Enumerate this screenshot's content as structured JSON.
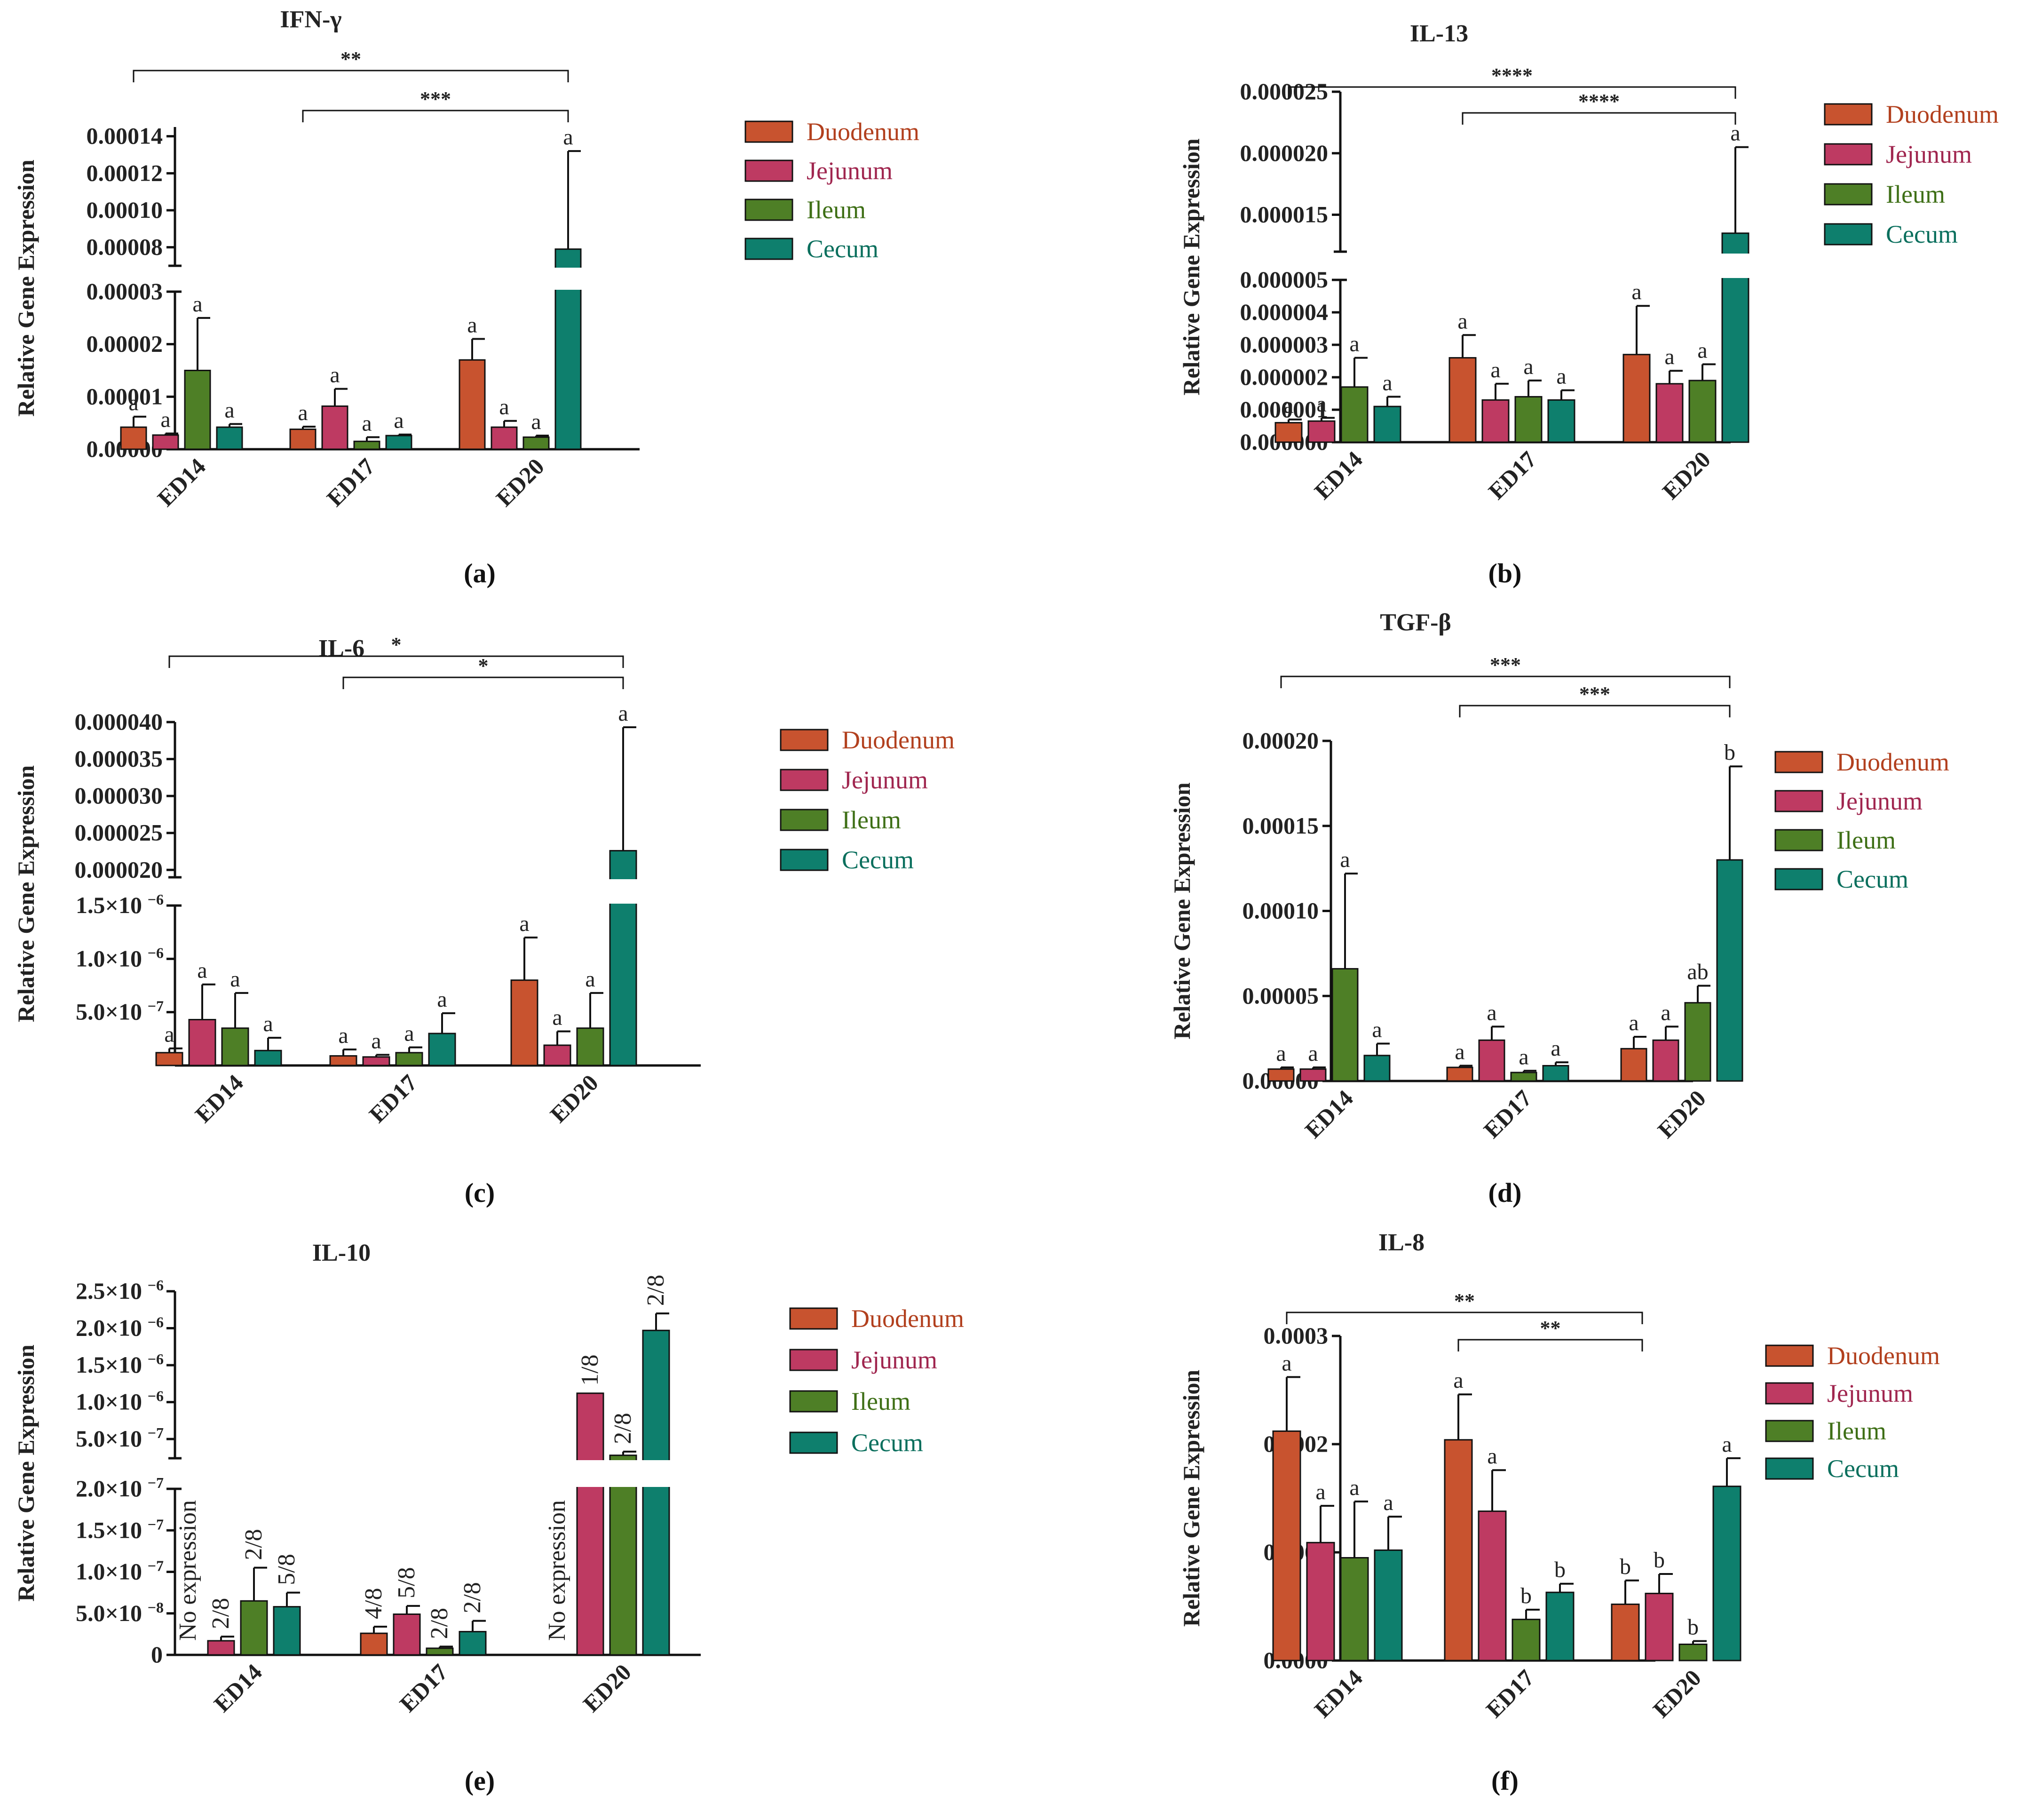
{
  "colors": {
    "Duodenum": "#C8532F",
    "Jejunum": "#BE3A62",
    "Ileum": "#4E7F26",
    "Cecum": "#0E7F6D",
    "legend_text": {
      "Duodenum": "#B2401E",
      "Jejunum": "#A0264F",
      "Ileum": "#3E6F16",
      "Cecum": "#0A6F5D"
    }
  },
  "legend": [
    "Duodenum",
    "Jejunum",
    "Ileum",
    "Cecum"
  ],
  "y_axis_label": "Relative Gene Expression",
  "chart_data": [
    {
      "panel": "(a)",
      "title": "IFN-γ",
      "type": "bar",
      "categories": [
        "ED14",
        "ED17",
        "ED20"
      ],
      "ylabel": "Relative Gene Expression",
      "axis_break": true,
      "lower": {
        "ylim": [
          0,
          3e-05
        ],
        "ticks": [
          0,
          1e-05,
          2e-05,
          3e-05
        ],
        "tick_labels": [
          "0.00000",
          "0.00001",
          "0.00002",
          "0.00003"
        ]
      },
      "upper": {
        "ylim": [
          7e-05,
          0.000145
        ],
        "ticks": [
          8e-05,
          0.0001,
          0.00012,
          0.00014
        ],
        "tick_labels": [
          "0.00008",
          "0.00010",
          "0.00012",
          "0.00014"
        ]
      },
      "series": [
        {
          "name": "Duodenum",
          "values": [
            4.2e-06,
            3.8e-06,
            1.7e-05
          ],
          "err": [
            2e-06,
            5e-07,
            4e-06
          ],
          "letters": [
            "a",
            "a",
            "a"
          ]
        },
        {
          "name": "Jejunum",
          "values": [
            2.7e-06,
            8.2e-06,
            4.2e-06
          ],
          "err": [
            3e-07,
            3.3e-06,
            1.2e-06
          ],
          "letters": [
            "a",
            "a",
            "a"
          ]
        },
        {
          "name": "Ileum",
          "values": [
            1.5e-05,
            1.5e-06,
            2.3e-06
          ],
          "err": [
            1e-05,
            8e-07,
            3e-07
          ],
          "letters": [
            "a",
            "a",
            "a"
          ]
        },
        {
          "name": "Cecum",
          "values": [
            4.2e-06,
            2.6e-06,
            7.9e-05
          ],
          "err": [
            6e-07,
            2e-07,
            5.3e-05
          ],
          "letters": [
            "a",
            "a",
            "a"
          ]
        }
      ],
      "brackets": [
        {
          "label": "**",
          "from": 0,
          "to": 2
        },
        {
          "label": "***",
          "from": 1,
          "to": 2
        }
      ]
    },
    {
      "panel": "(b)",
      "title": "IL-13",
      "type": "bar",
      "categories": [
        "ED14",
        "ED17",
        "ED20"
      ],
      "ylabel": "Relative Gene Expression",
      "axis_break": true,
      "lower": {
        "ylim": [
          0,
          5e-06
        ],
        "ticks": [
          0,
          1e-06,
          2e-06,
          3e-06,
          4e-06,
          5e-06
        ],
        "tick_labels": [
          "0.000000",
          "0.000001",
          "0.000002",
          "0.000003",
          "0.000004",
          "0.000005"
        ]
      },
      "upper": {
        "ylim": [
          1.2e-05,
          2.5e-05
        ],
        "ticks": [
          1.5e-05,
          2e-05,
          2.5e-05
        ],
        "tick_labels": [
          "0.000015",
          "0.000020",
          "0.000025"
        ]
      },
      "series": [
        {
          "name": "Duodenum",
          "values": [
            6e-07,
            2.6e-06,
            2.7e-06
          ],
          "err": [
            1e-07,
            7e-07,
            1.5e-06
          ],
          "letters": [
            "a",
            "a",
            "a"
          ]
        },
        {
          "name": "Jejunum",
          "values": [
            6.5e-07,
            1.3e-06,
            1.8e-06
          ],
          "err": [
            1e-07,
            5e-07,
            4e-07
          ],
          "letters": [
            "a",
            "a",
            "a"
          ]
        },
        {
          "name": "Ileum",
          "values": [
            1.7e-06,
            1.4e-06,
            1.9e-06
          ],
          "err": [
            9e-07,
            5e-07,
            5e-07
          ],
          "letters": [
            "a",
            "a",
            "a"
          ]
        },
        {
          "name": "Cecum",
          "values": [
            1.1e-06,
            1.3e-06,
            1.35e-05
          ],
          "err": [
            3e-07,
            3e-07,
            7e-06
          ],
          "letters": [
            "a",
            "a",
            "a"
          ]
        }
      ],
      "brackets": [
        {
          "label": "****",
          "from": 0,
          "to": 2
        },
        {
          "label": "****",
          "from": 1,
          "to": 2
        }
      ]
    },
    {
      "panel": "(c)",
      "title": "IL-6",
      "type": "bar",
      "categories": [
        "ED14",
        "ED17",
        "ED20"
      ],
      "ylabel": "Relative Gene Expression",
      "axis_break": true,
      "lower": {
        "ylim": [
          0,
          1.5e-06
        ],
        "ticks": [
          5e-07,
          1e-06,
          1.5e-06
        ],
        "tick_labels": [
          "5.0×10",
          "1.0×10",
          "1.5×10"
        ],
        "tick_exps": [
          "−7",
          "−6",
          "−6"
        ]
      },
      "upper": {
        "ylim": [
          1.9e-05,
          4e-05
        ],
        "ticks": [
          2e-05,
          2.5e-05,
          3e-05,
          3.5e-05,
          4e-05
        ],
        "tick_labels": [
          "0.000020",
          "0.000025",
          "0.000030",
          "0.000035",
          "0.000040"
        ]
      },
      "series": [
        {
          "name": "Duodenum",
          "values": [
            1.2e-07,
            9e-08,
            8e-07
          ],
          "err": [
            4e-08,
            6e-08,
            4e-07
          ],
          "letters": [
            "a",
            "a",
            "a"
          ]
        },
        {
          "name": "Jejunum",
          "values": [
            4.3e-07,
            8e-08,
            1.9e-07
          ],
          "err": [
            3.3e-07,
            2e-08,
            1.3e-07
          ],
          "letters": [
            "a",
            "a",
            "a"
          ]
        },
        {
          "name": "Ileum",
          "values": [
            3.5e-07,
            1.2e-07,
            3.5e-07
          ],
          "err": [
            3.3e-07,
            5e-08,
            3.3e-07
          ],
          "letters": [
            "a",
            "a",
            "a"
          ]
        },
        {
          "name": "Cecum",
          "values": [
            1.4e-07,
            3e-07,
            2.26e-05
          ],
          "err": [
            1.2e-07,
            1.9e-07,
            1.67e-05
          ],
          "letters": [
            "a",
            "a",
            "a"
          ]
        }
      ],
      "brackets": [
        {
          "label": "*",
          "from": 0,
          "to": 2
        },
        {
          "label": "*",
          "from": 1,
          "to": 2
        }
      ]
    },
    {
      "panel": "(d)",
      "title": "TGF-β",
      "type": "bar",
      "categories": [
        "ED14",
        "ED17",
        "ED20"
      ],
      "ylabel": "Relative Gene Expression",
      "axis_break": false,
      "lower": {
        "ylim": [
          0,
          0.0002
        ],
        "ticks": [
          0,
          5e-05,
          0.0001,
          0.00015,
          0.0002
        ],
        "tick_labels": [
          "0.00000",
          "0.00005",
          "0.00010",
          "0.00015",
          "0.00020"
        ]
      },
      "series": [
        {
          "name": "Duodenum",
          "values": [
            7e-06,
            8e-06,
            1.9e-05
          ],
          "err": [
            1e-06,
            1e-06,
            7e-06
          ],
          "letters": [
            "a",
            "a",
            "a"
          ]
        },
        {
          "name": "Jejunum",
          "values": [
            7e-06,
            2.4e-05,
            2.4e-05
          ],
          "err": [
            1e-06,
            8e-06,
            8e-06
          ],
          "letters": [
            "a",
            "a",
            "a"
          ]
        },
        {
          "name": "Ileum",
          "values": [
            6.6e-05,
            5e-06,
            4.6e-05
          ],
          "err": [
            5.6e-05,
            1e-06,
            1e-05
          ],
          "letters": [
            "a",
            "a",
            "ab"
          ]
        },
        {
          "name": "Cecum",
          "values": [
            1.5e-05,
            9e-06,
            0.00013
          ],
          "err": [
            7e-06,
            2e-06,
            5.5e-05
          ],
          "letters": [
            "a",
            "a",
            "b"
          ]
        }
      ],
      "brackets": [
        {
          "label": "***",
          "from": 0,
          "to": 2
        },
        {
          "label": "***",
          "from": 1,
          "to": 2
        }
      ]
    },
    {
      "panel": "(e)",
      "title": "IL-10",
      "type": "bar",
      "categories": [
        "ED14",
        "ED17",
        "ED20"
      ],
      "ylabel": "Relative Gene Expression",
      "axis_break": true,
      "lower": {
        "ylim": [
          0,
          2e-07
        ],
        "ticks": [
          0,
          5e-08,
          1e-07,
          1.5e-07,
          2e-07
        ],
        "tick_labels": [
          "0",
          "5.0×10",
          "1.0×10",
          "1.5×10",
          "2.0×10"
        ],
        "tick_exps": [
          "",
          "−8",
          "−7",
          "−7",
          "−7"
        ]
      },
      "upper": {
        "ylim": [
          2.4e-07,
          2.5e-06
        ],
        "ticks": [
          5e-07,
          1e-06,
          1.5e-06,
          2e-06,
          2.5e-06
        ],
        "tick_labels": [
          "5.0×10",
          "1.0×10",
          "1.5×10",
          "2.0×10",
          "2.5×10"
        ],
        "tick_exps": [
          "−7",
          "−6",
          "−6",
          "−6",
          "−6"
        ]
      },
      "series": [
        {
          "name": "Duodenum",
          "values": [
            null,
            2.6e-08,
            null
          ],
          "err": [
            0,
            8e-09,
            0
          ],
          "letters": [
            "",
            "4/8",
            ""
          ]
        },
        {
          "name": "Jejunum",
          "values": [
            1.7e-08,
            4.9e-08,
            1.12e-06
          ],
          "err": [
            5e-09,
            1e-08,
            0
          ],
          "letters": [
            "2/8",
            "5/8",
            "1/8"
          ]
        },
        {
          "name": "Ileum",
          "values": [
            6.5e-08,
            8e-09,
            2.8e-07
          ],
          "err": [
            4e-08,
            2e-09,
            5e-08
          ],
          "letters": [
            "2/8",
            "2/8",
            "2/8"
          ]
        },
        {
          "name": "Cecum",
          "values": [
            5.8e-08,
            2.8e-08,
            1.97e-06
          ],
          "err": [
            1.7e-08,
            1.3e-08,
            2.3e-07
          ],
          "letters": [
            "5/8",
            "2/8",
            "2/8"
          ]
        }
      ],
      "annotations": [
        {
          "text": "No expression",
          "category": 0
        },
        {
          "text": "No expression",
          "category": 2
        }
      ],
      "brackets": []
    },
    {
      "panel": "(f)",
      "title": "IL-8",
      "type": "bar",
      "categories": [
        "ED14",
        "ED17",
        "ED20"
      ],
      "ylabel": "Relative Gene Expression",
      "axis_break": false,
      "lower": {
        "ylim": [
          0,
          0.0003
        ],
        "ticks": [
          0,
          0.0001,
          0.0002,
          0.0003
        ],
        "tick_labels": [
          "0.0000",
          "0.0001",
          "0.0002",
          "0.0003"
        ]
      },
      "series": [
        {
          "name": "Duodenum",
          "values": [
            0.000212,
            0.000204,
            5.2e-05
          ],
          "err": [
            5e-05,
            4.2e-05,
            2.2e-05
          ],
          "letters": [
            "a",
            "a",
            "b"
          ]
        },
        {
          "name": "Jejunum",
          "values": [
            0.000109,
            0.000138,
            6.2e-05
          ],
          "err": [
            3.4e-05,
            3.8e-05,
            1.8e-05
          ],
          "letters": [
            "a",
            "a",
            "b"
          ]
        },
        {
          "name": "Ileum",
          "values": [
            9.5e-05,
            3.8e-05,
            1.5e-05
          ],
          "err": [
            5.2e-05,
            9e-06,
            3e-06
          ],
          "letters": [
            "a",
            "b",
            "b"
          ]
        },
        {
          "name": "Cecum",
          "values": [
            0.000102,
            6.3e-05,
            0.000161
          ],
          "err": [
            3.1e-05,
            8e-06,
            2.6e-05
          ],
          "letters": [
            "a",
            "b",
            "a"
          ]
        }
      ],
      "brackets": [
        {
          "label": "**",
          "from": 0,
          "to": 1
        },
        {
          "label": "**",
          "from": 1,
          "to": 1
        }
      ]
    }
  ]
}
